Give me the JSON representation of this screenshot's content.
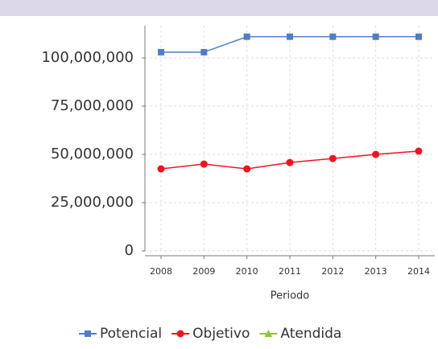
{
  "chart_data": {
    "type": "line",
    "x_label": "Periodo",
    "categories": [
      "2008",
      "2009",
      "2010",
      "2011",
      "2012",
      "2013",
      "2014"
    ],
    "series": [
      {
        "name": "Potencial",
        "color": "#4a7ec8",
        "marker": "square",
        "values": [
          103000000,
          103000000,
          111000000,
          111000000,
          111000000,
          111000000,
          111000000
        ]
      },
      {
        "name": "Objetivo",
        "color": "#f0141e",
        "marker": "circle",
        "values": [
          42500000,
          45000000,
          42500000,
          45800000,
          47900000,
          50000000,
          51700000
        ]
      },
      {
        "name": "Atendida",
        "color": "#8cc83c",
        "marker": "triangle",
        "values": [
          null,
          null,
          null,
          null,
          null,
          null,
          null
        ]
      }
    ],
    "ylim": [
      0,
      116700000
    ],
    "yticks": [
      {
        "value": 0,
        "label": "0"
      },
      {
        "value": 25000000,
        "label": "25,000,000"
      },
      {
        "value": 50000000,
        "label": "50,000,000"
      },
      {
        "value": 75000000,
        "label": "75,000,000"
      },
      {
        "value": 100000000,
        "label": "100,000,000"
      }
    ],
    "grid": true
  }
}
